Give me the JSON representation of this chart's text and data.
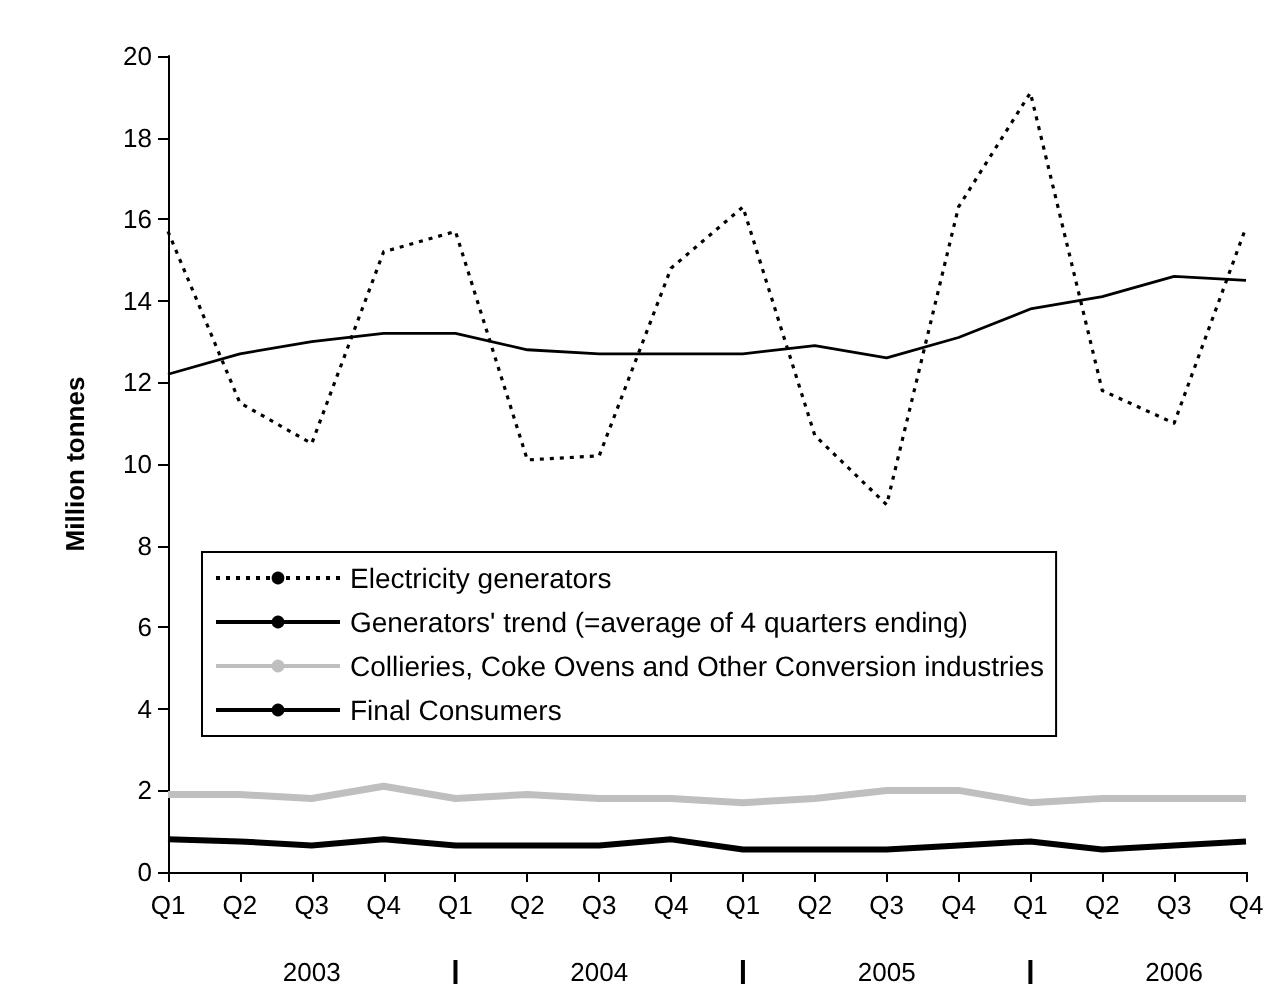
{
  "chart_data": {
    "type": "line",
    "ylabel": "Million tonnes",
    "categories": [
      "Q1",
      "Q2",
      "Q3",
      "Q4",
      "Q1",
      "Q2",
      "Q3",
      "Q4",
      "Q1",
      "Q2",
      "Q3",
      "Q4",
      "Q1",
      "Q2",
      "Q3",
      "Q4"
    ],
    "annotations": [
      "2003",
      "2004",
      "2005",
      "2006"
    ],
    "series": [
      {
        "name": "Electricity generators",
        "color": "#000000",
        "line_style": "dotted",
        "values": [
          15.7,
          11.5,
          10.5,
          15.2,
          15.7,
          10.1,
          10.2,
          14.8,
          16.3,
          10.7,
          9.0,
          16.3,
          19.1,
          11.8,
          11.0,
          15.8
        ]
      },
      {
        "name": "Generators' trend (=average of 4 quarters ending)",
        "color": "#000000",
        "line_style": "solid",
        "values": [
          12.2,
          12.7,
          13.0,
          13.2,
          13.2,
          12.8,
          12.7,
          12.7,
          12.7,
          12.9,
          12.6,
          13.1,
          13.8,
          14.1,
          14.6,
          14.5
        ]
      },
      {
        "name": "Collieries, Coke Ovens and Other Conversion industries",
        "color": "#bfbfbf",
        "line_style": "solid",
        "values": [
          1.9,
          1.9,
          1.8,
          2.1,
          1.8,
          1.9,
          1.8,
          1.8,
          1.7,
          1.8,
          2.0,
          2.0,
          1.7,
          1.8,
          1.8,
          1.8
        ]
      },
      {
        "name": "Final Consumers",
        "color": "#000000",
        "line_style": "solid",
        "values": [
          0.8,
          0.75,
          0.65,
          0.8,
          0.65,
          0.65,
          0.65,
          0.8,
          0.55,
          0.55,
          0.55,
          0.65,
          0.75,
          0.55,
          0.65,
          0.75
        ]
      }
    ],
    "ylim": [
      0,
      20
    ],
    "yticks": [
      0,
      2,
      4,
      6,
      8,
      10,
      12,
      14,
      16,
      18,
      20
    ],
    "grid": false,
    "legend": "bottom",
    "marker": "none"
  }
}
